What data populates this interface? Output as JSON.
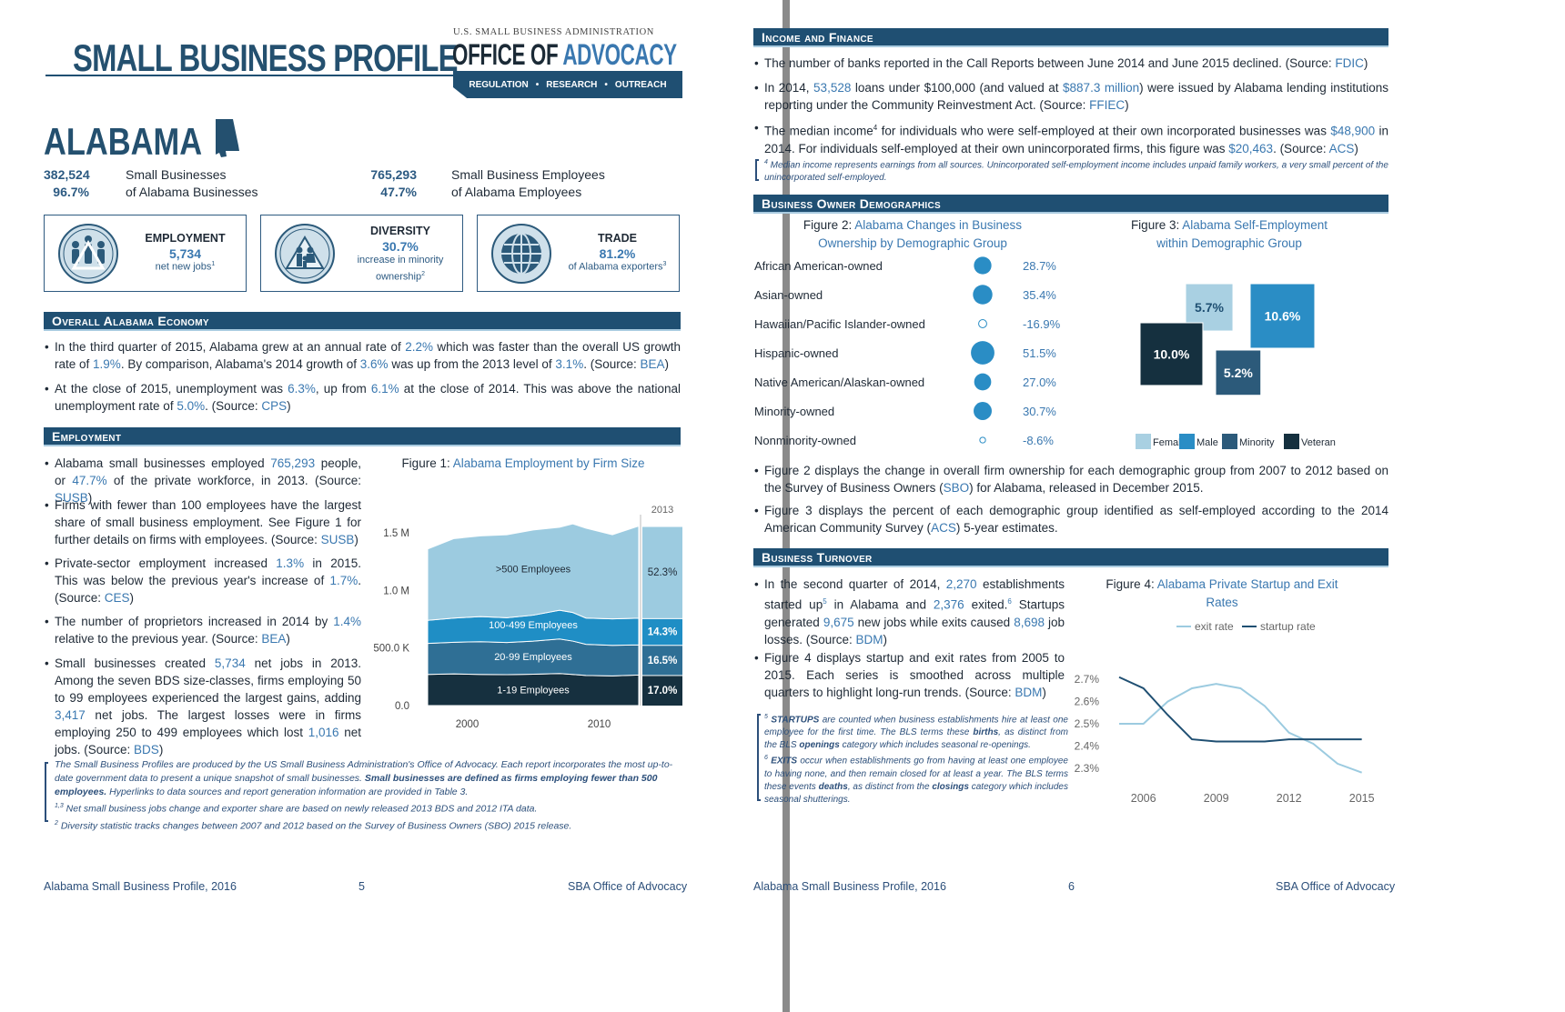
{
  "left": {
    "header_title": "SMALL BUSINESS PROFILE",
    "sba_line": "U.S. SMALL BUSINESS ADMINISTRATION",
    "office_of": "OFFICE OF",
    "advocacy": "ADVOCACY",
    "ribbon": [
      "REGULATION",
      "RESEARCH",
      "OUTREACH"
    ],
    "state": "ALABAMA",
    "stats": [
      {
        "num": "382,524",
        "label": "Small Businesses"
      },
      {
        "num": "96.7%",
        "label": "of Alabama Businesses"
      },
      {
        "num": "765,293",
        "label": "Small Business Employees"
      },
      {
        "num": "47.7%",
        "label": "of Alabama Employees"
      }
    ],
    "cards": [
      {
        "title": "EMPLOYMENT",
        "value": "5,734",
        "sub": "net new jobs",
        "sup": "1",
        "icon": "employment-icon"
      },
      {
        "title": "DIVERSITY",
        "value": "30.7%",
        "sub": "increase in minority ownership",
        "sup": "2",
        "icon": "diversity-icon"
      },
      {
        "title": "TRADE",
        "value": "81.2%",
        "sub": "of Alabama exporters",
        "sup": "3",
        "icon": "globe-icon"
      }
    ],
    "sec_economy": "Overall Alabama Economy",
    "econ_b1": {
      "p1": "In the third quarter of 2015, Alabama grew at an annual rate of ",
      "v1": "2.2%",
      "p2": " which was faster than the overall US growth rate of ",
      "v2": "1.9%",
      "p3": ". By comparison, Alabama's 2014 growth of ",
      "v3": "3.6%",
      "p4": " was up from the 2013 level of ",
      "v4": "3.1%",
      "p5": ". (Source: ",
      "src": "BEA",
      "p6": ")"
    },
    "econ_b2": {
      "p1": "At the close of 2015, unemployment was ",
      "v1": "6.3%",
      "p2": ", up from ",
      "v2": "6.1%",
      "p3": " at the close of 2014. This was above the national unemployment rate of ",
      "v3": "5.0%",
      "p4": ". (Source: ",
      "src": "CPS",
      "p5": ")"
    },
    "sec_employment": "Employment",
    "emp_b1": {
      "p1": "Alabama small businesses employed ",
      "v1": "765,293",
      "p2": " people, or ",
      "v2": "47.7%",
      "p3": " of the private workforce, in 2013. (Source: ",
      "src": "SUSB",
      "p4": ")"
    },
    "emp_b2": {
      "p1": "Firms with fewer than 100 employees have the largest share of small business employment. See Figure 1 for further details on firms with employees. (Source: ",
      "src": "SUSB",
      "p2": ")"
    },
    "emp_b3": {
      "p1": "Private-sector employment increased ",
      "v1": "1.3%",
      "p2": " in 2015. This was below the previous year's increase of ",
      "v2": "1.7%",
      "p3": ". (Source: ",
      "src": "CES",
      "p4": ")"
    },
    "emp_b4": {
      "p1": "The number of proprietors increased in 2014 by ",
      "v1": "1.4%",
      "p2": " relative to the previous year. (Source: ",
      "src": "BEA",
      "p3": ")"
    },
    "emp_b5": {
      "p1": "Small businesses created ",
      "v1": "5,734",
      "p2": " net jobs in 2013. Among the seven BDS size-classes, firms employing 50 to 99 employees experienced the largest gains, adding ",
      "v2": "3,417",
      "p3": " net jobs. The largest losses were in firms employing 250 to 499 employees which lost ",
      "v3": "1,016",
      "p4": " net jobs. (Source: ",
      "src": "BDS",
      "p5": ")"
    },
    "fig1_prefix": "Figure 1: ",
    "fig1_title": "Alabama Employment by Firm Size",
    "note1": "The Small Business Profiles are produced by the US Small Business Administration's Office of Advocacy. Each report incorporates the most up-to-date government data to present a unique snapshot of small businesses.",
    "note1_bold": "Small businesses are defined as firms employing fewer than 500 employees.",
    "note1_end": " Hyperlinks to data sources and report generation information are provided in Table 3.",
    "note2_sup": "1,3",
    "note2": " Net small business jobs change and exporter share are based on newly released 2013 BDS and 2012 ITA data.",
    "note3_sup": "2",
    "note3": " Diversity statistic tracks changes between 2007 and 2012 based on the Survey of Business Owners (SBO) 2015 release.",
    "footer_left": "Alabama Small Business Profile, 2016",
    "page_num": "5",
    "footer_right": "SBA Office of Advocacy"
  },
  "right": {
    "sec_income": "Income and Finance",
    "inc_b1": {
      "p1": "The number of banks reported in the Call Reports between June 2014 and June 2015 declined. (Source: ",
      "src": "FDIC",
      "p2": ")"
    },
    "inc_b2": {
      "p1": "In 2014, ",
      "v1": "53,528",
      "p2": " loans under $100,000 (and valued at ",
      "v2": "$887.3 million",
      "p3": ") were issued by Alabama lending institutions reporting under the Community Reinvestment Act. (Source: ",
      "src": "FFIEC",
      "p4": ")"
    },
    "inc_b3": {
      "p1": "The median income",
      "sup": "4",
      "p2": " for individuals who were self-employed at their own incorporated businesses was ",
      "v1": "$48,900",
      "p3": " in 2014. For individuals self-employed at their own unincorporated firms, this figure was ",
      "v2": "$20,463",
      "p4": ". (Source: ",
      "src": "ACS",
      "p5": ")"
    },
    "inc_note_sup": "4",
    "inc_note": " Median income represents earnings from all sources. Unincorporated self-employment income includes unpaid family workers, a very small percent of the unincorporated self-employed.",
    "sec_demo": "Business Owner Demographics",
    "fig2_prefix": "Figure 2: ",
    "fig2_title": "Alabama Changes in Business Ownership by Demographic Group",
    "fig3_prefix": "Figure 3: ",
    "fig3_title": "Alabama Self-Employment within Demographic Group",
    "fig2_rows": [
      {
        "label": "African American-owned",
        "value": "28.7%"
      },
      {
        "label": "Asian-owned",
        "value": "35.4%"
      },
      {
        "label": "Hawaiian/Pacific Islander-owned",
        "value": "-16.9%"
      },
      {
        "label": "Hispanic-owned",
        "value": "51.5%"
      },
      {
        "label": "Native American/Alaskan-owned",
        "value": "27.0%"
      },
      {
        "label": "Minority-owned",
        "value": "30.7%"
      },
      {
        "label": "Nonminority-owned",
        "value": "-8.6%"
      }
    ],
    "demo_b1": {
      "p1": "Figure 2 displays the change in overall firm ownership for each demographic group from 2007 to 2012 based on the Survey of Business Owners (",
      "src": "SBO",
      "p2": ") for Alabama, released in December 2015."
    },
    "demo_b2": {
      "p1": "Figure 3 displays the percent of each demographic group identified as self-employed according to the 2014 American Community Survey (",
      "src": "ACS",
      "p2": ") 5-year estimates."
    },
    "sec_turnover": "Business Turnover",
    "turn_b1": {
      "p1": "In the second quarter of 2014, ",
      "v1": "2,270",
      "p2": " establishments started up",
      "sup1": "5",
      "p3": " in Alabama and ",
      "v2": "2,376",
      "p4": " exited.",
      "sup2": "6",
      "p5": " Startups generated ",
      "v3": "9,675",
      "p6": " new jobs while exits caused ",
      "v4": "8,698",
      "p7": " job losses. (Source: ",
      "src": "BDM",
      "p8": ")"
    },
    "turn_b2": {
      "p1": "Figure 4 displays startup and exit rates from 2005 to 2015. Each series is smoothed across multiple quarters to highlight long-run trends. (Source: ",
      "src": "BDM",
      "p2": ")"
    },
    "fig4_prefix": "Figure 4: ",
    "fig4_title": "Alabama Private Startup and Exit Rates",
    "turn_note": {
      "s5": "5",
      "w1": "STARTUPS",
      "t1": " are counted when business establishments hire at least one employee for the first time. The BLS terms these ",
      "b1": "births",
      "t2": ", as distinct from the BLS ",
      "b2": "openings",
      "t3": " category which includes seasonal re-openings.",
      "s6": "6",
      "w2": "EXITS",
      "t4": " occur when establishments go from having at least one employee to having none, and then remain closed for at least a year. The BLS terms these events ",
      "b3": "deaths",
      "t5": ", as distinct from the ",
      "b4": "closings",
      "t6": " category which includes seasonal shutterings."
    },
    "footer_left": "Alabama Small Business Profile, 2016",
    "page_num": "6",
    "footer_right": "SBA Office of Advocacy"
  },
  "colors": {
    "navy": "#1f4f72",
    "mid": "#2f6f95",
    "light": "#9ccbe0",
    "bright": "#1f8ec5",
    "dark": "#16303f",
    "link": "#3a78b0"
  },
  "chart_data": [
    {
      "type": "area",
      "title": "Alabama Employment by Firm Size",
      "x_ticks": [
        "2000",
        "2010"
      ],
      "y_ticks": [
        "0.0",
        "500.0 K",
        "1.0 M",
        "1.5 M"
      ],
      "ylim": [
        0,
        1800000
      ],
      "x": [
        1997,
        1999,
        2001,
        2003,
        2005,
        2007,
        2008,
        2009,
        2011,
        2013
      ],
      "series": [
        {
          "name": "1-19 Employees",
          "values": [
            270000,
            275000,
            270000,
            268000,
            272000,
            278000,
            270000,
            262000,
            258000,
            265000
          ],
          "share_2013": "17.0%"
        },
        {
          "name": "20-99 Employees",
          "values": [
            270000,
            275000,
            285000,
            280000,
            288000,
            300000,
            290000,
            270000,
            265000,
            262000
          ],
          "share_2013": "16.5%"
        },
        {
          "name": "100-499 Employees",
          "values": [
            200000,
            210000,
            218000,
            215000,
            225000,
            250000,
            248000,
            228000,
            230000,
            232000
          ],
          "share_2013": "14.3%"
        },
        {
          "name": ">500 Employees",
          "values": [
            620000,
            690000,
            700000,
            720000,
            740000,
            720000,
            770000,
            780000,
            730000,
            800000
          ],
          "share_2013": "52.3%"
        }
      ],
      "year_label": "2013"
    },
    {
      "type": "scatter",
      "title": "Alabama Changes in Business Ownership by Demographic Group",
      "categories": [
        "African American-owned",
        "Asian-owned",
        "Hawaiian/Pacific Islander-owned",
        "Hispanic-owned",
        "Native American/Alaskan-owned",
        "Minority-owned",
        "Nonminority-owned"
      ],
      "values": [
        28.7,
        35.4,
        -16.9,
        51.5,
        27.0,
        30.7,
        -8.6
      ]
    },
    {
      "type": "bar",
      "title": "Alabama Self-Employment within Demographic Group",
      "categories": [
        "Female",
        "Male",
        "Minority",
        "Veteran"
      ],
      "values": [
        5.7,
        10.6,
        5.2,
        10.0
      ],
      "labels": [
        "5.7%",
        "10.6%",
        "5.2%",
        "10.0%"
      ],
      "colors": [
        "#a9d0e2",
        "#2a8dc5",
        "#2c5a7a",
        "#15303f"
      ]
    },
    {
      "type": "line",
      "title": "Alabama Private Startup and Exit Rates",
      "x_ticks": [
        "2006",
        "2009",
        "2012",
        "2015"
      ],
      "y_ticks": [
        "2.3%",
        "2.4%",
        "2.5%",
        "2.6%",
        "2.7%"
      ],
      "ylim": [
        2.25,
        2.75
      ],
      "x": [
        2005,
        2006,
        2007,
        2008,
        2009,
        2010,
        2011,
        2012,
        2013,
        2014,
        2015
      ],
      "series": [
        {
          "name": "exit rate",
          "values": [
            2.5,
            2.5,
            2.6,
            2.66,
            2.68,
            2.66,
            2.58,
            2.46,
            2.41,
            2.32,
            2.28
          ],
          "color": "#9ccbe0"
        },
        {
          "name": "startup rate",
          "values": [
            2.71,
            2.66,
            2.54,
            2.43,
            2.42,
            2.42,
            2.42,
            2.43,
            2.43,
            2.43,
            2.43
          ],
          "color": "#1f4f72"
        }
      ]
    }
  ]
}
